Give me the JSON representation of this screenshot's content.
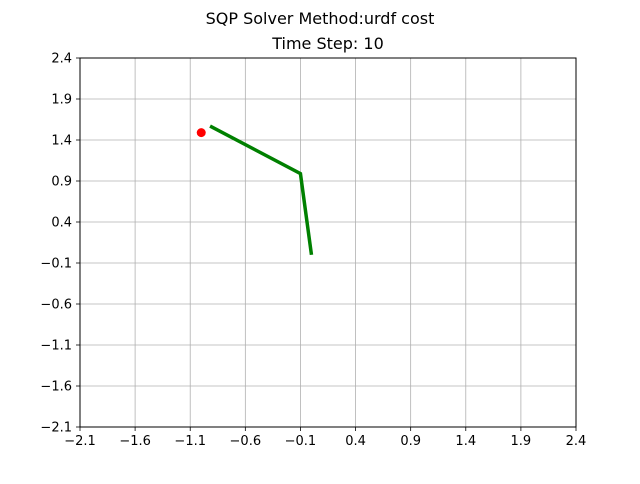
{
  "chart_data": {
    "type": "line",
    "title": "SQP Solver Method:urdf cost",
    "subtitle": "Time Step: 10",
    "xlabel": "",
    "ylabel": "",
    "xlim": [
      -2.1,
      2.4
    ],
    "ylim": [
      -2.1,
      2.4
    ],
    "xticks": [
      "−2.1",
      "−1.6",
      "−1.1",
      "−0.6",
      "−0.1",
      "0.4",
      "0.9",
      "1.4",
      "1.9",
      "2.4"
    ],
    "yticks": [
      "−2.1",
      "−1.6",
      "−1.1",
      "−0.6",
      "−0.1",
      "0.4",
      "0.9",
      "1.4",
      "1.9",
      "2.4"
    ],
    "grid": true,
    "legend": "none",
    "series": [
      {
        "type": "line",
        "color": "#008000",
        "x": [
          -0.92,
          -0.1,
          0.0
        ],
        "y": [
          1.57,
          0.99,
          0.0
        ]
      },
      {
        "type": "scatter",
        "color": "#ff0000",
        "x": [
          -1.0
        ],
        "y": [
          1.49
        ]
      }
    ]
  }
}
